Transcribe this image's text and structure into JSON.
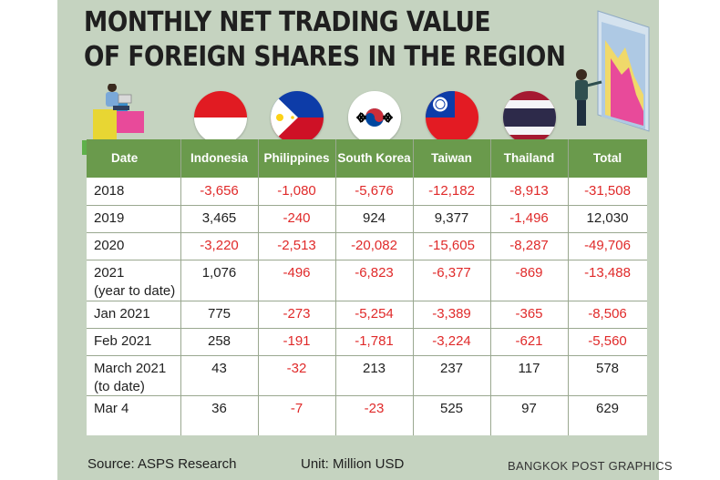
{
  "title": {
    "line1": "MONTHLY NET TRADING VALUE",
    "line2": "OF FOREIGN SHARES IN THE REGION"
  },
  "chart_data": {
    "type": "table",
    "title": "Monthly net trading value of foreign shares in the region",
    "unit": "Million USD",
    "columns": [
      "Date",
      "Indonesia",
      "Philippines",
      "South Korea",
      "Taiwan",
      "Thailand",
      "Total"
    ],
    "rows": [
      {
        "label": "2018",
        "sublabel": "",
        "values": [
          "-3,656",
          "-1,080",
          "-5,676",
          "-12,182",
          "-8,913",
          "-31,508"
        ]
      },
      {
        "label": "2019",
        "sublabel": "",
        "values": [
          "3,465",
          "-240",
          "924",
          "9,377",
          "-1,496",
          "12,030"
        ]
      },
      {
        "label": "2020",
        "sublabel": "",
        "values": [
          "-3,220",
          "-2,513",
          "-20,082",
          "-15,605",
          "-8,287",
          "-49,706"
        ]
      },
      {
        "label": "2021",
        "sublabel": "(year to date)",
        "values": [
          "1,076",
          "-496",
          "-6,823",
          "-6,377",
          "-869",
          "-13,488"
        ]
      },
      {
        "label": "Jan 2021",
        "sublabel": "",
        "values": [
          "775",
          "-273",
          "-5,254",
          "-3,389",
          "-365",
          "-8,506"
        ]
      },
      {
        "label": "Feb 2021",
        "sublabel": "",
        "values": [
          "258",
          "-191",
          "-1,781",
          "-3,224",
          "-621",
          "-5,560"
        ]
      },
      {
        "label": "March 2021",
        "sublabel": "(to date)",
        "values": [
          "43",
          "-32",
          "213",
          "237",
          "117",
          "578"
        ]
      },
      {
        "label": "Mar 4",
        "sublabel": "",
        "values": [
          "36",
          "-7",
          "-23",
          "525",
          "97",
          "629"
        ]
      }
    ]
  },
  "footer": {
    "source": "Source: ASPS Research",
    "unit": "Unit: Million USD",
    "credit": "BANGKOK POST GRAPHICS"
  },
  "colors": {
    "header_green": "#6a9a4c",
    "background": "#c5d3c0",
    "negative": "#e02a2a",
    "text": "#1f1f1f"
  },
  "icons": [
    "indonesia-flag-icon",
    "philippines-flag-icon",
    "south-korea-flag-icon",
    "taiwan-flag-icon",
    "thailand-flag-icon",
    "investor-laptop-illustration",
    "businesswoman-chart-illustration"
  ]
}
